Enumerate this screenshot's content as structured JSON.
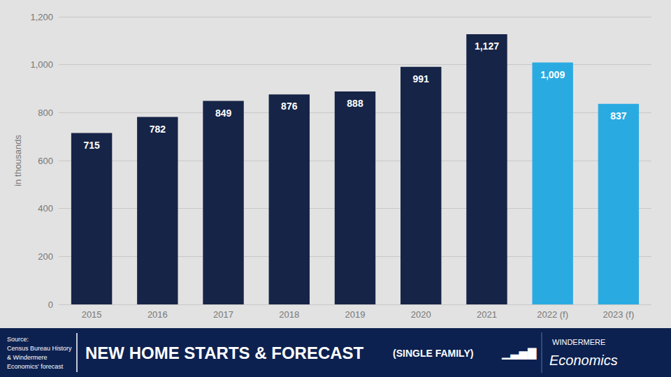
{
  "chart_data": {
    "type": "bar",
    "title": "NEW HOME STARTS & FORECAST",
    "subtitle": "(SINGLE FAMILY)",
    "ylabel": "in thousands",
    "categories": [
      "2015",
      "2016",
      "2017",
      "2018",
      "2019",
      "2020",
      "2021",
      "2022 (f)",
      "2023 (f)"
    ],
    "values": [
      715,
      782,
      849,
      876,
      888,
      991,
      1127,
      1009,
      837
    ],
    "value_labels": [
      "715",
      "782",
      "849",
      "876",
      "888",
      "991",
      "1,127",
      "1,009",
      "837"
    ],
    "colors": [
      "#162447",
      "#162447",
      "#162447",
      "#162447",
      "#162447",
      "#162447",
      "#162447",
      "#29ABE2",
      "#29ABE2"
    ],
    "ylim": [
      0,
      1200
    ],
    "yticks": [
      0,
      200,
      400,
      600,
      800,
      {
        "value": 1000,
        "label": "1,000"
      },
      {
        "value": 1200,
        "label": "1,200"
      }
    ],
    "grid": true,
    "data_labels": true,
    "annotations": [
      "Source:\nCensus Bureau History\n& Windermere\nEconomics' forecast",
      "▁▃▅▇",
      "WINDERMERE",
      "Economics"
    ]
  }
}
